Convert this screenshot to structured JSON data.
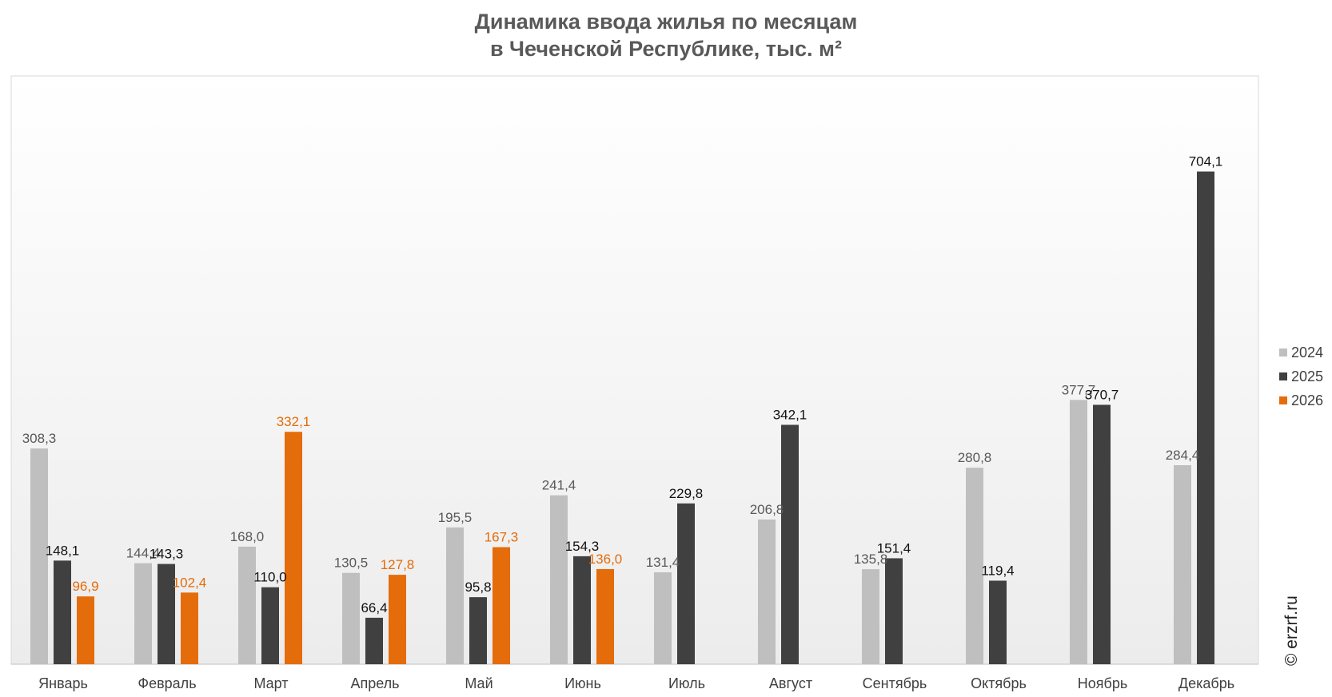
{
  "chart_data": {
    "type": "bar",
    "title": [
      "Динамика ввода жилья по месяцам",
      "в Чеченской Республике, тыс. м²"
    ],
    "categories": [
      "Январь",
      "Февраль",
      "Март",
      "Апрель",
      "Май",
      "Июнь",
      "Июль",
      "Август",
      "Сентябрь",
      "Октябрь",
      "Ноябрь",
      "Декабрь"
    ],
    "series": [
      {
        "name": "2024",
        "color": "#bfbfbf",
        "label_color": "#595959",
        "values": [
          308.3,
          144.4,
          168.0,
          130.5,
          195.5,
          241.4,
          131.4,
          206.8,
          135.8,
          280.8,
          377.7,
          284.4
        ],
        "labels": [
          "308,3",
          "144,4",
          "168,0",
          "130,5",
          "195,5",
          "241,4",
          "131,4",
          "206,8",
          "135,8",
          "280,8",
          "377,7",
          "284,4"
        ]
      },
      {
        "name": "2025",
        "color": "#404040",
        "label_color": "#111111",
        "values": [
          148.1,
          143.3,
          110.0,
          66.4,
          95.8,
          154.3,
          229.8,
          342.1,
          151.4,
          119.4,
          370.7,
          704.1
        ],
        "labels": [
          "148,1",
          "143,3",
          "110,0",
          "66,4",
          "95,8",
          "154,3",
          "229,8",
          "342,1",
          "151,4",
          "119,4",
          "370,7",
          "704,1"
        ]
      },
      {
        "name": "2026",
        "color": "#e46c0a",
        "label_color": "#e46c0a",
        "values": [
          96.9,
          102.4,
          332.1,
          127.8,
          167.3,
          136.0,
          null,
          null,
          null,
          null,
          null,
          null
        ],
        "labels": [
          "96,9",
          "102,4",
          "332,1",
          "127,8",
          "167,3",
          "136,0",
          null,
          null,
          null,
          null,
          null,
          null
        ]
      }
    ],
    "ylim": [
      0,
      800
    ],
    "legend": "right",
    "grid": false
  },
  "watermark": "© erzrf.ru"
}
